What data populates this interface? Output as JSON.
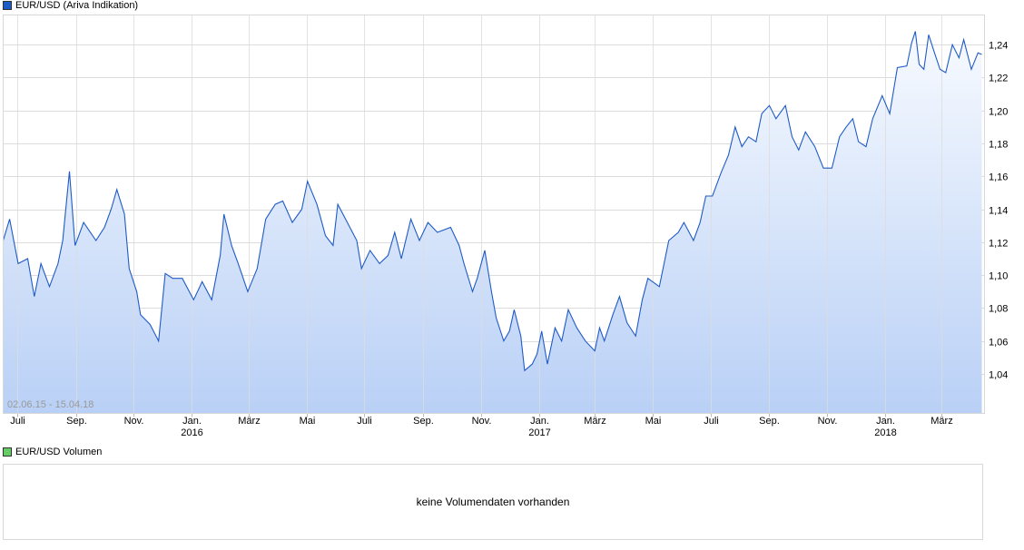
{
  "price_panel": {
    "legend": "EUR/USD (Ariva Indikation)",
    "legend_color": "#1f5bc6",
    "range_label": "02.06.15 - 15.04.18"
  },
  "volume_panel": {
    "legend": "EUR/USD Volumen",
    "legend_color": "#66cc66",
    "message": "keine Volumendaten vorhanden"
  },
  "chart_data": {
    "type": "area",
    "title": "EUR/USD (Ariva Indikation)",
    "line_color": "#1f5bc6",
    "grid": true,
    "ylim": [
      1.016,
      1.258
    ],
    "y_ticks": [
      1.04,
      1.06,
      1.08,
      1.1,
      1.12,
      1.14,
      1.16,
      1.18,
      1.2,
      1.22,
      1.24
    ],
    "y_tick_labels": [
      "1,04",
      "1,06",
      "1,08",
      "1,10",
      "1,12",
      "1,14",
      "1,16",
      "1,18",
      "1,20",
      "1,22",
      "1,24"
    ],
    "x_ticks": [
      {
        "date": "2015-07-01",
        "label": "Juli",
        "year": ""
      },
      {
        "date": "2015-09-01",
        "label": "Sep.",
        "year": ""
      },
      {
        "date": "2015-11-01",
        "label": "Nov.",
        "year": ""
      },
      {
        "date": "2016-01-01",
        "label": "Jan.",
        "year": "2016"
      },
      {
        "date": "2016-03-01",
        "label": "März",
        "year": ""
      },
      {
        "date": "2016-05-01",
        "label": "Mai",
        "year": ""
      },
      {
        "date": "2016-07-01",
        "label": "Juli",
        "year": ""
      },
      {
        "date": "2016-09-01",
        "label": "Sep.",
        "year": ""
      },
      {
        "date": "2016-11-01",
        "label": "Nov.",
        "year": ""
      },
      {
        "date": "2017-01-01",
        "label": "Jan.",
        "year": "2017"
      },
      {
        "date": "2017-03-01",
        "label": "März",
        "year": ""
      },
      {
        "date": "2017-05-01",
        "label": "Mai",
        "year": ""
      },
      {
        "date": "2017-07-01",
        "label": "Juli",
        "year": ""
      },
      {
        "date": "2017-09-01",
        "label": "Sep.",
        "year": ""
      },
      {
        "date": "2017-11-01",
        "label": "Nov.",
        "year": ""
      },
      {
        "date": "2018-01-01",
        "label": "Jan.",
        "year": "2018"
      },
      {
        "date": "2018-03-01",
        "label": "März",
        "year": ""
      }
    ],
    "points": [
      [
        "2015-06-16",
        1.121
      ],
      [
        "2015-06-23",
        1.134
      ],
      [
        "2015-07-02",
        1.107
      ],
      [
        "2015-07-12",
        1.11
      ],
      [
        "2015-07-19",
        1.087
      ],
      [
        "2015-07-26",
        1.107
      ],
      [
        "2015-08-04",
        1.093
      ],
      [
        "2015-08-13",
        1.107
      ],
      [
        "2015-08-18",
        1.121
      ],
      [
        "2015-08-25",
        1.163
      ],
      [
        "2015-08-31",
        1.118
      ],
      [
        "2015-09-09",
        1.132
      ],
      [
        "2015-09-22",
        1.121
      ],
      [
        "2015-10-01",
        1.129
      ],
      [
        "2015-10-08",
        1.14
      ],
      [
        "2015-10-14",
        1.152
      ],
      [
        "2015-10-22",
        1.137
      ],
      [
        "2015-10-27",
        1.104
      ],
      [
        "2015-11-04",
        1.09
      ],
      [
        "2015-11-08",
        1.076
      ],
      [
        "2015-11-18",
        1.07
      ],
      [
        "2015-11-27",
        1.06
      ],
      [
        "2015-12-04",
        1.101
      ],
      [
        "2015-12-12",
        1.098
      ],
      [
        "2015-12-22",
        1.098
      ],
      [
        "2016-01-03",
        1.085
      ],
      [
        "2016-01-12",
        1.096
      ],
      [
        "2016-01-22",
        1.085
      ],
      [
        "2016-01-31",
        1.112
      ],
      [
        "2016-02-04",
        1.137
      ],
      [
        "2016-02-12",
        1.118
      ],
      [
        "2016-02-19",
        1.107
      ],
      [
        "2016-02-29",
        1.09
      ],
      [
        "2016-03-10",
        1.104
      ],
      [
        "2016-03-19",
        1.134
      ],
      [
        "2016-03-29",
        1.143
      ],
      [
        "2016-04-06",
        1.145
      ],
      [
        "2016-04-16",
        1.132
      ],
      [
        "2016-04-26",
        1.14
      ],
      [
        "2016-05-02",
        1.157
      ],
      [
        "2016-05-12",
        1.143
      ],
      [
        "2016-05-21",
        1.124
      ],
      [
        "2016-05-29",
        1.118
      ],
      [
        "2016-06-03",
        1.143
      ],
      [
        "2016-06-13",
        1.132
      ],
      [
        "2016-06-23",
        1.121
      ],
      [
        "2016-06-28",
        1.104
      ],
      [
        "2016-07-07",
        1.115
      ],
      [
        "2016-07-17",
        1.107
      ],
      [
        "2016-07-26",
        1.112
      ],
      [
        "2016-08-02",
        1.126
      ],
      [
        "2016-08-09",
        1.11
      ],
      [
        "2016-08-19",
        1.134
      ],
      [
        "2016-08-28",
        1.121
      ],
      [
        "2016-09-06",
        1.132
      ],
      [
        "2016-09-16",
        1.126
      ],
      [
        "2016-09-30",
        1.129
      ],
      [
        "2016-10-09",
        1.118
      ],
      [
        "2016-10-14",
        1.107
      ],
      [
        "2016-10-23",
        1.09
      ],
      [
        "2016-10-28",
        1.098
      ],
      [
        "2016-11-05",
        1.115
      ],
      [
        "2016-11-12",
        1.09
      ],
      [
        "2016-11-17",
        1.074
      ],
      [
        "2016-11-25",
        1.06
      ],
      [
        "2016-12-01",
        1.066
      ],
      [
        "2016-12-06",
        1.079
      ],
      [
        "2016-12-13",
        1.063
      ],
      [
        "2016-12-17",
        1.042
      ],
      [
        "2016-12-25",
        1.046
      ],
      [
        "2016-12-30",
        1.052
      ],
      [
        "2017-01-04",
        1.066
      ],
      [
        "2017-01-10",
        1.046
      ],
      [
        "2017-01-18",
        1.068
      ],
      [
        "2017-01-25",
        1.06
      ],
      [
        "2017-02-01",
        1.079
      ],
      [
        "2017-02-10",
        1.068
      ],
      [
        "2017-02-19",
        1.06
      ],
      [
        "2017-03-01",
        1.054
      ],
      [
        "2017-03-06",
        1.068
      ],
      [
        "2017-03-11",
        1.06
      ],
      [
        "2017-03-20",
        1.076
      ],
      [
        "2017-03-27",
        1.087
      ],
      [
        "2017-04-04",
        1.071
      ],
      [
        "2017-04-13",
        1.063
      ],
      [
        "2017-04-20",
        1.085
      ],
      [
        "2017-04-26",
        1.098
      ],
      [
        "2017-05-08",
        1.093
      ],
      [
        "2017-05-18",
        1.121
      ],
      [
        "2017-05-28",
        1.126
      ],
      [
        "2017-06-03",
        1.132
      ],
      [
        "2017-06-13",
        1.121
      ],
      [
        "2017-06-20",
        1.132
      ],
      [
        "2017-06-26",
        1.148
      ],
      [
        "2017-07-03",
        1.148
      ],
      [
        "2017-07-12",
        1.162
      ],
      [
        "2017-07-20",
        1.173
      ],
      [
        "2017-07-27",
        1.19
      ],
      [
        "2017-08-03",
        1.178
      ],
      [
        "2017-08-10",
        1.184
      ],
      [
        "2017-08-18",
        1.181
      ],
      [
        "2017-08-24",
        1.198
      ],
      [
        "2017-09-01",
        1.203
      ],
      [
        "2017-09-08",
        1.195
      ],
      [
        "2017-09-18",
        1.203
      ],
      [
        "2017-09-25",
        1.184
      ],
      [
        "2017-10-02",
        1.176
      ],
      [
        "2017-10-09",
        1.187
      ],
      [
        "2017-10-19",
        1.178
      ],
      [
        "2017-10-28",
        1.165
      ],
      [
        "2017-11-06",
        1.165
      ],
      [
        "2017-11-14",
        1.184
      ],
      [
        "2017-11-21",
        1.19
      ],
      [
        "2017-11-28",
        1.195
      ],
      [
        "2017-12-04",
        1.181
      ],
      [
        "2017-12-12",
        1.178
      ],
      [
        "2017-12-19",
        1.195
      ],
      [
        "2017-12-29",
        1.209
      ],
      [
        "2018-01-06",
        1.198
      ],
      [
        "2018-01-14",
        1.226
      ],
      [
        "2018-01-24",
        1.227
      ],
      [
        "2018-01-29",
        1.241
      ],
      [
        "2018-02-02",
        1.248
      ],
      [
        "2018-02-06",
        1.228
      ],
      [
        "2018-02-11",
        1.225
      ],
      [
        "2018-02-16",
        1.246
      ],
      [
        "2018-02-21",
        1.237
      ],
      [
        "2018-02-28",
        1.225
      ],
      [
        "2018-03-06",
        1.223
      ],
      [
        "2018-03-13",
        1.24
      ],
      [
        "2018-03-20",
        1.232
      ],
      [
        "2018-03-25",
        1.243
      ],
      [
        "2018-04-02",
        1.225
      ],
      [
        "2018-04-09",
        1.235
      ],
      [
        "2018-04-13",
        1.234
      ]
    ]
  }
}
